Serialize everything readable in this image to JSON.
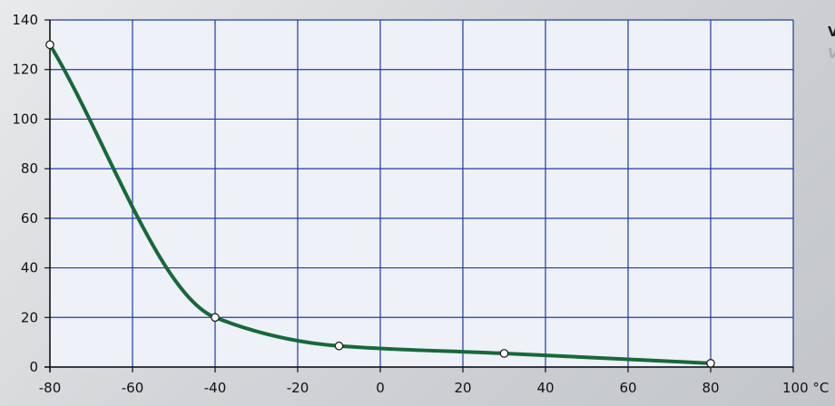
{
  "chart_data": {
    "type": "line",
    "title": "",
    "xlabel": "",
    "ylabel": "",
    "x_unit": "°C",
    "xlim": [
      -80,
      100
    ],
    "ylim": [
      0,
      140
    ],
    "x_ticks": [
      -80,
      -60,
      -40,
      -20,
      0,
      20,
      40,
      60,
      80,
      100
    ],
    "y_ticks": [
      0,
      20,
      40,
      60,
      80,
      100,
      120,
      140
    ],
    "grid": true,
    "colors": {
      "plot_background": "#eef1f7",
      "grid": "#1f3aa8",
      "line": "#17683a",
      "marker_fill": "#ffffff"
    },
    "series": [
      {
        "x": [
          -80,
          -40,
          -10,
          30,
          80
        ],
        "y": [
          130,
          20,
          8.5,
          5.5,
          1.5
        ]
      }
    ]
  },
  "side_text": {
    "line1": "V",
    "line2": "V"
  }
}
